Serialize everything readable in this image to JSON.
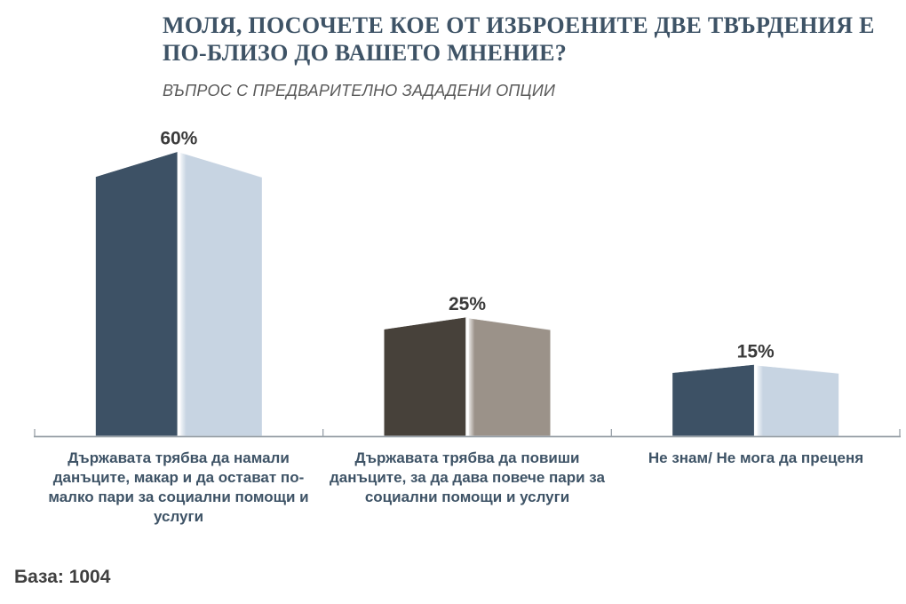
{
  "chart_data": {
    "type": "bar",
    "style": "3d-perspective-columns",
    "title": "МОЛЯ, ПОСОЧЕТЕ КОЕ ОТ ИЗБРОЕНИТЕ ДВЕ ТВЪРДЕНИЯ Е ПО-БЛИЗО ДО ВАШЕТО МНЕНИЕ?",
    "subtitle": "ВЪПРОС С ПРЕДВАРИТЕЛНО ЗАДАДЕНИ ОПЦИИ",
    "categories": [
      "Държавата трябва да намали данъците, макар и да остават по-малко пари за социални помощи и услуги",
      "Държавата трябва да повиши данъците, за да дава повече пари за социални помощи и услуги",
      "Не знам/ Не мога да преценя"
    ],
    "values": [
      60,
      25,
      15
    ],
    "value_labels": [
      "60%",
      "25%",
      "15%"
    ],
    "value_suffix": "%",
    "bar_colors": [
      {
        "front": "#3D5165",
        "side": "#C7D4E2"
      },
      {
        "front": "#47413A",
        "side": "#9B9289"
      },
      {
        "front": "#3D5165",
        "side": "#C7D4E2"
      }
    ],
    "grid": "off",
    "legend": "none",
    "baseline_axis": {
      "color": "#99A1A8"
    }
  },
  "footer": {
    "base_label": "База: 1004"
  },
  "colors": {
    "title": "#3E5366",
    "subtitle": "#595959",
    "category_label": "#3E5366",
    "value_label": "#3A3A3A"
  }
}
